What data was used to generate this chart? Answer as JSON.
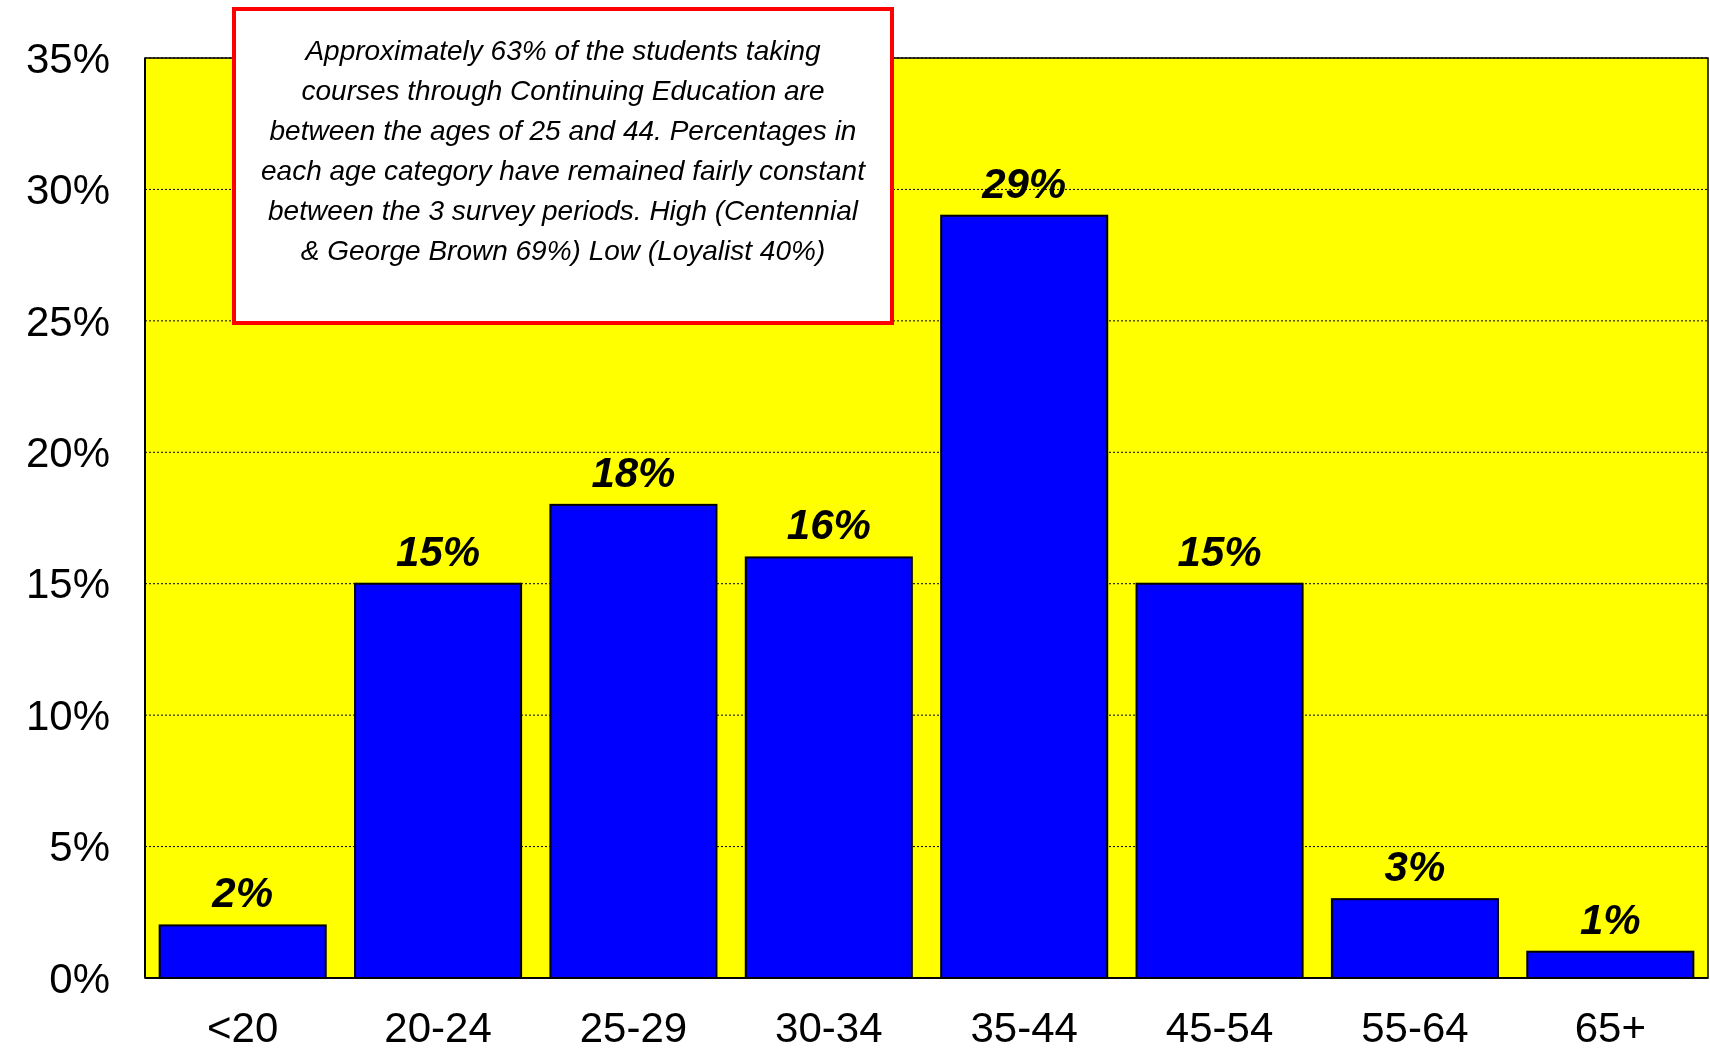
{
  "chart_data": {
    "type": "bar",
    "categories": [
      "<20",
      "20-24",
      "25-29",
      "30-34",
      "35-44",
      "45-54",
      "55-64",
      "65+"
    ],
    "values": [
      2,
      15,
      18,
      16,
      29,
      15,
      3,
      1
    ],
    "value_labels": [
      "2%",
      "15%",
      "18%",
      "16%",
      "29%",
      "15%",
      "3%",
      "1%"
    ],
    "color": "#0000ff",
    "ylim": [
      0,
      35
    ],
    "yticks": [
      {
        "value": 0,
        "label": "0%"
      },
      {
        "value": 5,
        "label": "5%"
      },
      {
        "value": 10,
        "label": "10%"
      },
      {
        "value": 15,
        "label": "15%"
      },
      {
        "value": 20,
        "label": "20%"
      },
      {
        "value": 25,
        "label": "25%"
      },
      {
        "value": 30,
        "label": "30%"
      },
      {
        "value": 35,
        "label": "35%"
      }
    ],
    "grid": "y",
    "annotations": [
      "Approximately 63% of the students taking courses through Continuing Education are between the ages of 25 and 44. Percentages in each age category have remained fairly constant between the 3 survey periods. High (Centennial & George Brown 69%) Low (Loyalist 40%)"
    ]
  }
}
